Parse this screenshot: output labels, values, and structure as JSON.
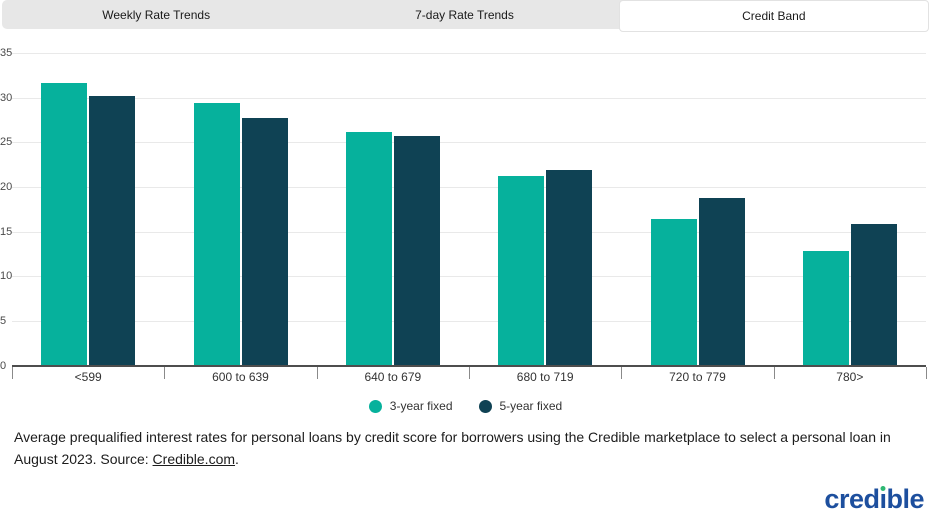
{
  "tabs": {
    "items": [
      {
        "label": "Weekly Rate Trends",
        "active": false
      },
      {
        "label": "7-day Rate Trends",
        "active": false
      },
      {
        "label": "Credit Band",
        "active": true
      }
    ]
  },
  "chart_data": {
    "type": "bar",
    "categories": [
      "<599",
      "600 to 639",
      "640 to 679",
      "680 to 719",
      "720 to 779",
      "780>"
    ],
    "series": [
      {
        "name": "3-year fixed",
        "color": "#06b19c",
        "values": [
          31.6,
          29.4,
          26.2,
          21.2,
          16.4,
          12.8
        ]
      },
      {
        "name": "5-year fixed",
        "color": "#0f4254",
        "values": [
          30.2,
          27.7,
          25.7,
          21.9,
          18.8,
          15.9
        ]
      }
    ],
    "ylim": [
      0,
      35
    ],
    "ytick_step": 5,
    "ytick_labels": [
      "0",
      "5",
      "10",
      "15",
      "20",
      "25",
      "30",
      "35"
    ],
    "grid": true,
    "legend_position": "bottom",
    "title": "",
    "xlabel": "",
    "ylabel": ""
  },
  "caption": {
    "text_before_link": "Average prequalified interest rates for personal loans by credit score for borrowers using the Credible marketplace to select a personal loan in August 2023. Source: ",
    "link": "Credible.com",
    "text_after_link": "."
  },
  "logo": {
    "part1": "cred",
    "i": "ı",
    "part2": "ble"
  },
  "colors": {
    "series_1": "#06b19c",
    "series_2": "#0f4254",
    "tab_bar_bg": "#e7e7e7",
    "logo_blue": "#1d4f9e",
    "logo_green": "#2eb873"
  }
}
